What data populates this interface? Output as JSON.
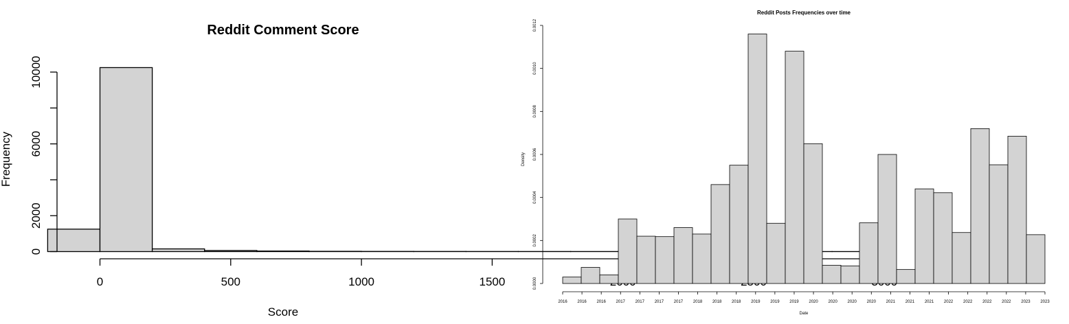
{
  "chart_data": [
    {
      "type": "bar",
      "title": "Reddit Comment Score",
      "xlabel": "Score",
      "ylabel": "Frequency",
      "bin_edges": [
        -200,
        0,
        200,
        400,
        600,
        800,
        1000,
        1200,
        1400,
        1600,
        1800,
        2000,
        2200,
        2400,
        2600,
        2800,
        3000
      ],
      "values": [
        1250,
        10250,
        150,
        60,
        30,
        15,
        10,
        8,
        6,
        5,
        4,
        3,
        3,
        2,
        2,
        2
      ],
      "xticks": [
        "0",
        "500",
        "1000",
        "1500",
        "2000",
        "2500",
        "3000"
      ],
      "xtick_values": [
        0,
        500,
        1000,
        1500,
        2000,
        2500,
        3000
      ],
      "yticks": [
        "0",
        "2000",
        "6000",
        "10000"
      ],
      "ytick_values": [
        0,
        2000,
        6000,
        10000
      ],
      "yminor_ticks": [
        4000,
        8000
      ],
      "xlim": [
        -200,
        3000
      ],
      "ylim": [
        0,
        10000
      ],
      "bar_fill": "#d3d3d3",
      "bar_stroke": "#000000"
    },
    {
      "type": "bar",
      "title": "Reddit Posts Frequencies over time",
      "xlabel": "Date",
      "ylabel": "Density",
      "values": [
        3e-05,
        7.5e-05,
        4e-05,
        0.0003,
        0.00022,
        0.000218,
        0.00026,
        0.00023,
        0.00046,
        0.00055,
        0.00116,
        0.00028,
        0.00108,
        0.00065,
        8.5e-05,
        8.2e-05,
        0.000282,
        0.0006,
        6.5e-05,
        0.00044,
        0.000422,
        0.000237,
        0.00072,
        0.000552,
        0.000685,
        0.000227
      ],
      "xticks": [
        "2016",
        "2016",
        "2016",
        "2017",
        "2017",
        "2017",
        "2017",
        "2018",
        "2018",
        "2018",
        "2019",
        "2019",
        "2019",
        "2020",
        "2020",
        "2020",
        "2020",
        "2021",
        "2021",
        "2021",
        "2022",
        "2022",
        "2022",
        "2022",
        "2023",
        "2023"
      ],
      "yticks": [
        "0.0000",
        "0.0002",
        "0.0004",
        "0.0006",
        "0.0008",
        "0.0010",
        "0.0012"
      ],
      "ytick_values": [
        0,
        0.0002,
        0.0004,
        0.0006,
        0.0008,
        0.001,
        0.0012
      ],
      "ylim": [
        0,
        0.0012
      ],
      "bar_fill": "#d3d3d3",
      "bar_stroke": "#555555"
    }
  ]
}
